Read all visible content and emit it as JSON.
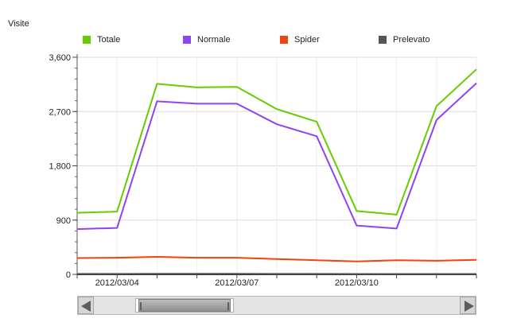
{
  "chart_data": {
    "type": "line",
    "ylabel": "Visite",
    "xlabel": "",
    "title": "",
    "ylim": [
      0,
      3600
    ],
    "y_ticks": [
      "3,600",
      "2,700",
      "1,800",
      "900",
      "0"
    ],
    "x_ticks": [
      "2012/03/04",
      "2012/03/07",
      "2012/03/10"
    ],
    "x": [
      "2012/03/03",
      "2012/03/04",
      "2012/03/05",
      "2012/03/06",
      "2012/03/07",
      "2012/03/08",
      "2012/03/09",
      "2012/03/10",
      "2012/03/11",
      "2012/03/12",
      "2012/03/13"
    ],
    "legend_position": "top",
    "series": [
      {
        "name": "Totale",
        "color": "#66cc00",
        "values": [
          1020,
          1040,
          3160,
          3100,
          3110,
          2740,
          2530,
          1050,
          990,
          2790,
          3400
        ]
      },
      {
        "name": "Normale",
        "color": "#8e44ee",
        "values": [
          750,
          770,
          2870,
          2830,
          2830,
          2490,
          2290,
          810,
          760,
          2560,
          3170
        ]
      },
      {
        "name": "Spider",
        "color": "#ee4411",
        "values": [
          270,
          275,
          290,
          275,
          275,
          255,
          235,
          215,
          235,
          225,
          240
        ]
      },
      {
        "name": "Prelevato",
        "color": "#555555",
        "values": [
          8,
          8,
          9,
          9,
          9,
          8,
          8,
          7,
          7,
          7,
          7
        ]
      }
    ]
  },
  "scrollbar": {
    "left_icon": "arrow-left-icon",
    "right_icon": "arrow-right-icon"
  }
}
